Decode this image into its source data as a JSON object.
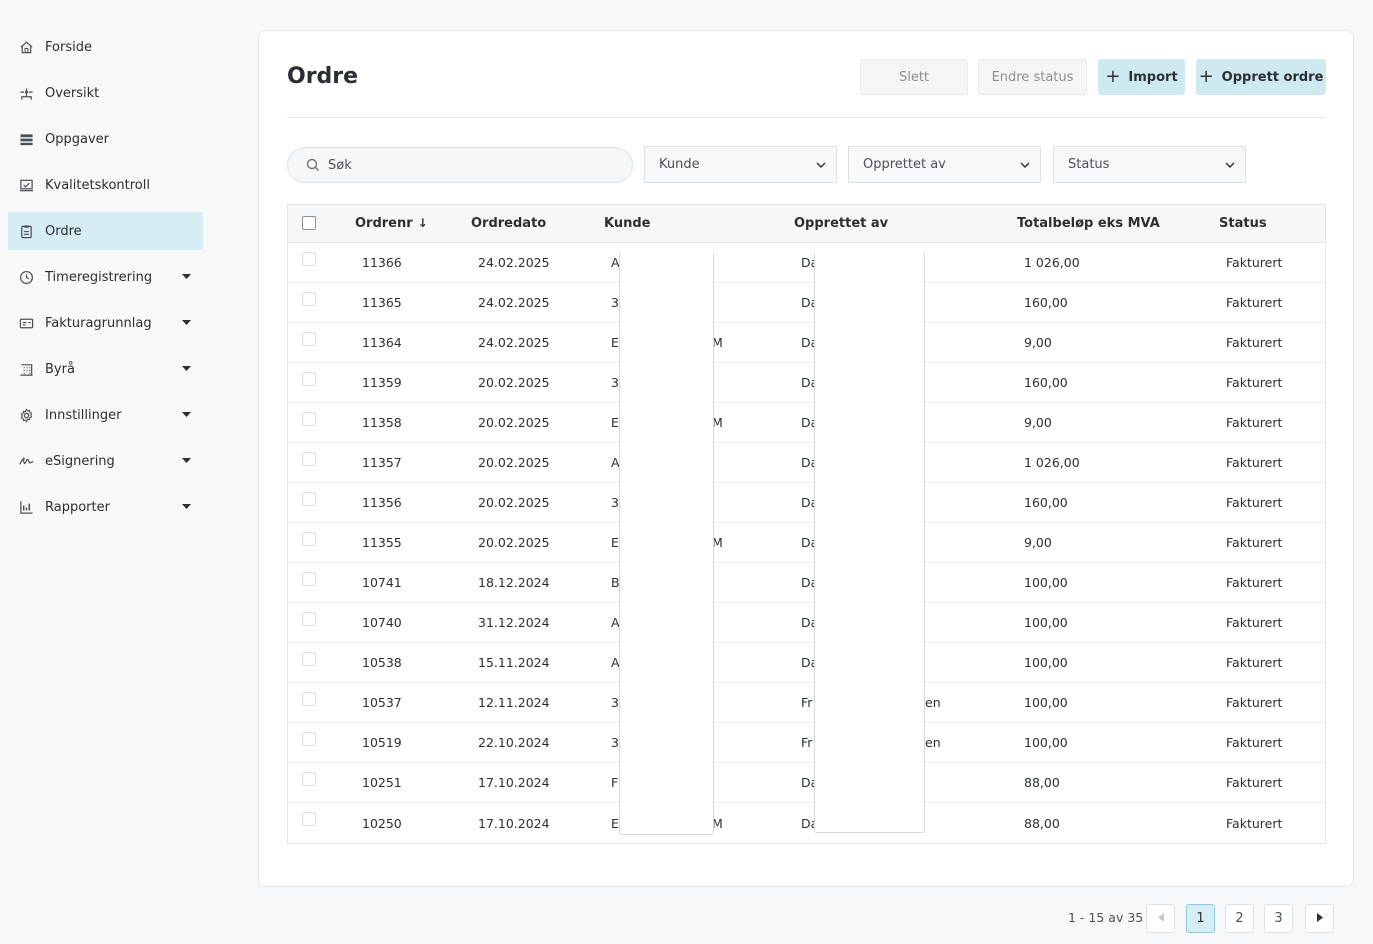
{
  "sidebar": {
    "items": [
      {
        "label": "Forside",
        "icon": "home-icon",
        "caret": false,
        "active": false
      },
      {
        "label": "Oversikt",
        "icon": "overview-icon",
        "caret": false,
        "active": false
      },
      {
        "label": "Oppgaver",
        "icon": "tasks-icon",
        "caret": false,
        "active": false
      },
      {
        "label": "Kvalitetskontroll",
        "icon": "quality-check-icon",
        "caret": false,
        "active": false
      },
      {
        "label": "Ordre",
        "icon": "clipboard-icon",
        "caret": false,
        "active": true
      },
      {
        "label": "Timeregistrering",
        "icon": "clock-icon",
        "caret": true,
        "active": false
      },
      {
        "label": "Fakturagrunnlag",
        "icon": "invoice-icon",
        "caret": true,
        "active": false
      },
      {
        "label": "Byrå",
        "icon": "building-icon",
        "caret": true,
        "active": false
      },
      {
        "label": "Innstillinger",
        "icon": "gear-icon",
        "caret": true,
        "active": false
      },
      {
        "label": "eSignering",
        "icon": "signature-icon",
        "caret": true,
        "active": false
      },
      {
        "label": "Rapporter",
        "icon": "chart-icon",
        "caret": true,
        "active": false
      }
    ]
  },
  "header": {
    "title": "Ordre",
    "delete_label": "Slett",
    "change_status_label": "Endre status",
    "import_label": "Import",
    "create_label": "Opprett ordre"
  },
  "filters": {
    "search_placeholder": "Søk",
    "kunde": "Kunde",
    "opprettet_av": "Opprettet av",
    "status": "Status"
  },
  "table": {
    "columns": {
      "ordrenr": "Ordrenr",
      "ordredato": "Ordredato",
      "kunde": "Kunde",
      "opprettet_av": "Opprettet av",
      "total": "Totalbeløp eks MVA",
      "status": "Status"
    },
    "rows": [
      {
        "ordrenr": "11366",
        "dato": "24.02.2025",
        "kunde_a": "A",
        "kunde_b": "",
        "opprettet_a": "Da",
        "opprettet_b": "",
        "total": "1 026,00",
        "status": "Fakturert"
      },
      {
        "ordrenr": "11365",
        "dato": "24.02.2025",
        "kunde_a": "3",
        "kunde_b": "",
        "opprettet_a": "Da",
        "opprettet_b": "",
        "total": "160,00",
        "status": "Fakturert"
      },
      {
        "ordrenr": "11364",
        "dato": "24.02.2025",
        "kunde_a": "E",
        "kunde_b": "M",
        "opprettet_a": "Da",
        "opprettet_b": "",
        "total": "9,00",
        "status": "Fakturert"
      },
      {
        "ordrenr": "11359",
        "dato": "20.02.2025",
        "kunde_a": "3",
        "kunde_b": "",
        "opprettet_a": "Da",
        "opprettet_b": "",
        "total": "160,00",
        "status": "Fakturert"
      },
      {
        "ordrenr": "11358",
        "dato": "20.02.2025",
        "kunde_a": "E",
        "kunde_b": "M",
        "opprettet_a": "Da",
        "opprettet_b": "",
        "total": "9,00",
        "status": "Fakturert"
      },
      {
        "ordrenr": "11357",
        "dato": "20.02.2025",
        "kunde_a": "A",
        "kunde_b": "",
        "opprettet_a": "Da",
        "opprettet_b": "",
        "total": "1 026,00",
        "status": "Fakturert"
      },
      {
        "ordrenr": "11356",
        "dato": "20.02.2025",
        "kunde_a": "3",
        "kunde_b": "",
        "opprettet_a": "Da",
        "opprettet_b": "",
        "total": "160,00",
        "status": "Fakturert"
      },
      {
        "ordrenr": "11355",
        "dato": "20.02.2025",
        "kunde_a": "E",
        "kunde_b": "M",
        "opprettet_a": "Da",
        "opprettet_b": "",
        "total": "9,00",
        "status": "Fakturert"
      },
      {
        "ordrenr": "10741",
        "dato": "18.12.2024",
        "kunde_a": "B",
        "kunde_b": "",
        "opprettet_a": "Da",
        "opprettet_b": "",
        "total": "100,00",
        "status": "Fakturert"
      },
      {
        "ordrenr": "10740",
        "dato": "31.12.2024",
        "kunde_a": "A",
        "kunde_b": "",
        "opprettet_a": "Da",
        "opprettet_b": "",
        "total": "100,00",
        "status": "Fakturert"
      },
      {
        "ordrenr": "10538",
        "dato": "15.11.2024",
        "kunde_a": "A",
        "kunde_b": "",
        "opprettet_a": "Da",
        "opprettet_b": "",
        "total": "100,00",
        "status": "Fakturert"
      },
      {
        "ordrenr": "10537",
        "dato": "12.11.2024",
        "kunde_a": "3",
        "kunde_b": "",
        "opprettet_a": "Fr",
        "opprettet_b": "en",
        "total": "100,00",
        "status": "Fakturert"
      },
      {
        "ordrenr": "10519",
        "dato": "22.10.2024",
        "kunde_a": "3",
        "kunde_b": "",
        "opprettet_a": "Fr",
        "opprettet_b": "en",
        "total": "100,00",
        "status": "Fakturert"
      },
      {
        "ordrenr": "10251",
        "dato": "17.10.2024",
        "kunde_a": "F",
        "kunde_b": "",
        "opprettet_a": "Da",
        "opprettet_b": "",
        "total": "88,00",
        "status": "Fakturert"
      },
      {
        "ordrenr": "10250",
        "dato": "17.10.2024",
        "kunde_a": "E",
        "kunde_b": "M",
        "opprettet_a": "Da",
        "opprettet_b": "",
        "total": "88,00",
        "status": "Fakturert"
      }
    ]
  },
  "pagination": {
    "info": "1 - 15 av 35",
    "pages": [
      "1",
      "2",
      "3"
    ],
    "current": "1"
  },
  "colors": {
    "accent": "#d5edf3",
    "primary_button": "#cfe9f1"
  }
}
